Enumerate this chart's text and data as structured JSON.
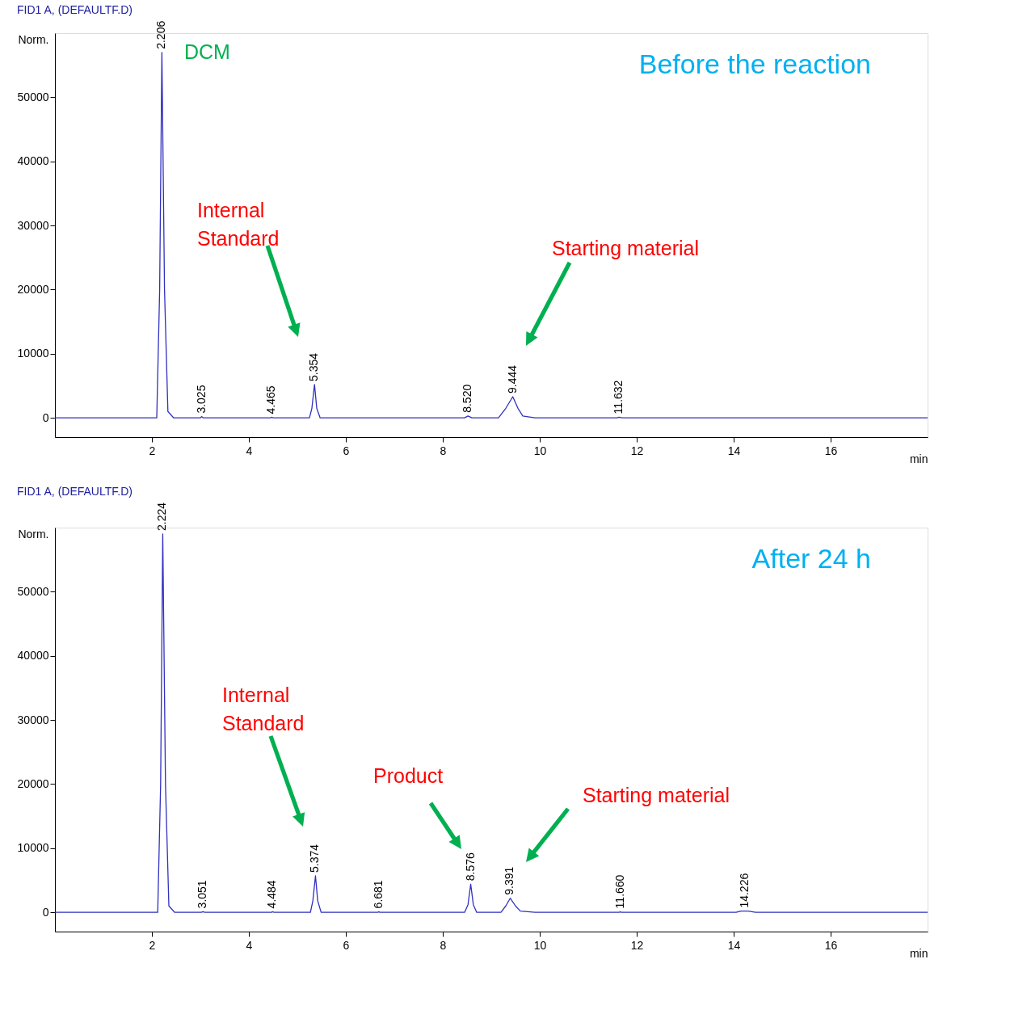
{
  "chart_data": [
    {
      "type": "line",
      "title": "FID1 A,  (DEFAULTF.D)",
      "xlabel": "min",
      "ylabel": "Norm.",
      "xlim": [
        0,
        18
      ],
      "ylim": [
        -3000,
        60000
      ],
      "xticks": [
        2,
        4,
        6,
        8,
        10,
        12,
        14,
        16
      ],
      "yticks": [
        0,
        10000,
        20000,
        30000,
        40000,
        50000
      ],
      "series": [
        {
          "color": "#3030c0",
          "x": [
            0,
            1.5,
            2.1,
            2.16,
            2.206,
            2.26,
            2.33,
            2.45,
            3.0,
            3.025,
            3.06,
            4.45,
            4.465,
            4.5,
            5.25,
            5.3,
            5.354,
            5.4,
            5.47,
            8.45,
            8.52,
            8.6,
            9.15,
            9.3,
            9.444,
            9.55,
            9.65,
            9.9,
            11.6,
            11.632,
            11.7,
            18
          ],
          "values": [
            0,
            0,
            0,
            20000,
            57000,
            20000,
            1000,
            0,
            0,
            200,
            0,
            0,
            100,
            0,
            0,
            1500,
            5200,
            1500,
            0,
            0,
            300,
            0,
            0,
            1500,
            3300,
            1500,
            300,
            0,
            0,
            100,
            0,
            0
          ]
        }
      ],
      "annotations": [
        {
          "text": "2.206",
          "x": 2.206,
          "y": 57000
        },
        {
          "text": "3.025",
          "x": 3.025,
          "y": 200
        },
        {
          "text": "4.465",
          "x": 4.465,
          "y": 100
        },
        {
          "text": "5.354",
          "x": 5.354,
          "y": 5200
        },
        {
          "text": "8.520",
          "x": 8.52,
          "y": 300
        },
        {
          "text": "9.444",
          "x": 9.444,
          "y": 3300
        },
        {
          "text": "11.632",
          "x": 11.632,
          "y": 100
        },
        "DCM",
        "Internal Standard",
        "Starting material",
        "Before the reaction"
      ]
    },
    {
      "type": "line",
      "title": "FID1 A,  (DEFAULTF.D)",
      "xlabel": "min",
      "ylabel": "Norm.",
      "xlim": [
        0,
        18
      ],
      "ylim": [
        -3000,
        60000
      ],
      "xticks": [
        2,
        4,
        6,
        8,
        10,
        12,
        14,
        16
      ],
      "yticks": [
        0,
        10000,
        20000,
        30000,
        40000,
        50000
      ],
      "series": [
        {
          "color": "#3030c0",
          "x": [
            0,
            1.5,
            2.12,
            2.18,
            2.224,
            2.28,
            2.35,
            2.47,
            3.02,
            3.051,
            3.09,
            4.47,
            4.484,
            4.52,
            5.27,
            5.32,
            5.374,
            5.42,
            5.49,
            6.66,
            6.681,
            6.7,
            8.45,
            8.52,
            8.576,
            8.63,
            8.7,
            9.2,
            9.3,
            9.391,
            9.5,
            9.6,
            9.9,
            11.64,
            11.66,
            11.68,
            14.05,
            14.15,
            14.226,
            14.3,
            14.45,
            18
          ],
          "values": [
            0,
            0,
            0,
            20000,
            59000,
            20000,
            1000,
            0,
            0,
            100,
            0,
            0,
            100,
            0,
            0,
            1800,
            5700,
            1800,
            0,
            0,
            100,
            0,
            0,
            1200,
            4400,
            1200,
            0,
            0,
            1000,
            2200,
            1000,
            200,
            0,
            0,
            100,
            0,
            0,
            200,
            200,
            200,
            0,
            0
          ]
        }
      ],
      "annotations": [
        {
          "text": "2.224",
          "x": 2.224,
          "y": 59000
        },
        {
          "text": "3.051",
          "x": 3.051,
          "y": 100
        },
        {
          "text": "4.484",
          "x": 4.484,
          "y": 100
        },
        {
          "text": "5.374",
          "x": 5.374,
          "y": 5700
        },
        {
          "text": "6.681",
          "x": 6.681,
          "y": 100
        },
        {
          "text": "8.576",
          "x": 8.576,
          "y": 4400
        },
        {
          "text": "9.391",
          "x": 9.391,
          "y": 2200
        },
        {
          "text": "11.660",
          "x": 11.66,
          "y": 100
        },
        {
          "text": "14.226",
          "x": 14.226,
          "y": 200
        },
        "Internal Standard",
        "Product",
        "Starting material",
        "After 24 h"
      ]
    }
  ]
}
